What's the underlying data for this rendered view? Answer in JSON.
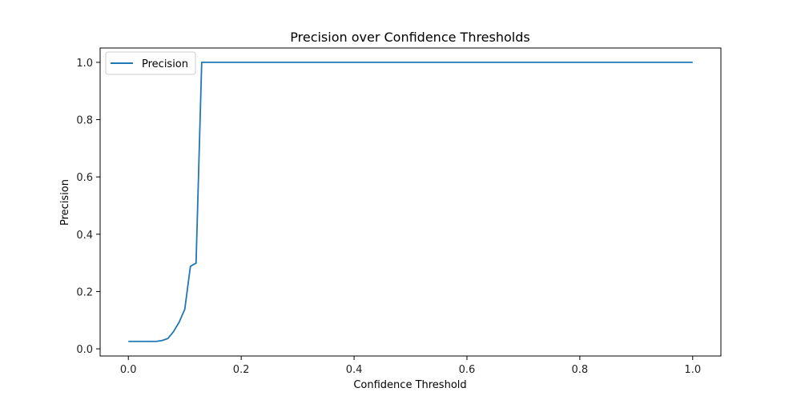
{
  "chart_data": {
    "type": "line",
    "title": "Precision over Confidence Thresholds",
    "xlabel": "Confidence Threshold",
    "ylabel": "Precision",
    "xlim": [
      -0.05,
      1.05
    ],
    "ylim": [
      -0.025,
      1.05
    ],
    "xticks": [
      "0.0",
      "0.2",
      "0.4",
      "0.6",
      "0.8",
      "1.0"
    ],
    "yticks": [
      "0.0",
      "0.2",
      "0.4",
      "0.6",
      "0.8",
      "1.0"
    ],
    "grid": false,
    "legend_position": "upper-left",
    "series": [
      {
        "name": "Precision",
        "color": "#1f77b4",
        "x": [
          0.0,
          0.01,
          0.02,
          0.03,
          0.04,
          0.05,
          0.06,
          0.07,
          0.08,
          0.09,
          0.1,
          0.11,
          0.12,
          0.13,
          0.14,
          0.2,
          0.3,
          0.4,
          0.5,
          0.6,
          0.7,
          0.8,
          0.9,
          1.0
        ],
        "y": [
          0.026,
          0.026,
          0.026,
          0.026,
          0.026,
          0.026,
          0.029,
          0.036,
          0.06,
          0.093,
          0.138,
          0.288,
          0.299,
          1.0,
          1.0,
          1.0,
          1.0,
          1.0,
          1.0,
          1.0,
          1.0,
          1.0,
          1.0,
          1.0
        ]
      }
    ]
  }
}
